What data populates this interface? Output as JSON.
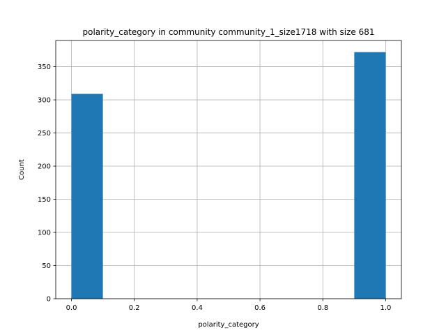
{
  "chart_data": {
    "type": "bar",
    "title": "polarity_category in community community_1_size1718 with size 681",
    "xlabel": "polarity_category",
    "ylabel": "Count",
    "xlim": [
      -0.05,
      1.05
    ],
    "ylim": [
      0,
      389.55
    ],
    "grid": true,
    "bar_color": "#1f77b4",
    "bins": [
      {
        "x0": 0.0,
        "x1": 0.1,
        "count": 309
      },
      {
        "x0": 0.9,
        "x1": 1.0,
        "count": 372
      }
    ],
    "xticks": [
      0.0,
      0.2,
      0.4,
      0.6,
      0.8,
      1.0
    ],
    "xtick_labels": [
      "0.0",
      "0.2",
      "0.4",
      "0.6",
      "0.8",
      "1.0"
    ],
    "yticks": [
      0,
      50,
      100,
      150,
      200,
      250,
      300,
      350
    ],
    "ytick_labels": [
      "0",
      "50",
      "100",
      "150",
      "200",
      "250",
      "300",
      "350"
    ]
  }
}
